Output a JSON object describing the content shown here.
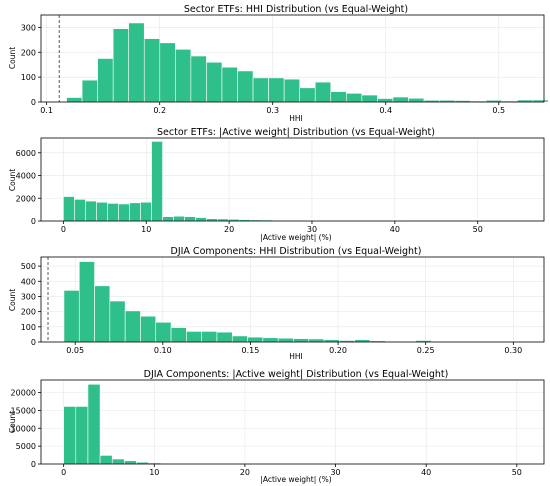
{
  "chart_data": [
    {
      "type": "bar",
      "title": "Sector ETFs: HHI Distribution (vs Equal-Weight)",
      "xlabel": "HHI",
      "ylabel": "Count",
      "xlim": [
        0.095,
        0.54
      ],
      "ylim": [
        0,
        350
      ],
      "xticks": [
        0.1,
        0.2,
        0.3,
        0.4,
        0.5
      ],
      "xtick_labels": [
        "0.1",
        "0.2",
        "0.3",
        "0.4",
        "0.5"
      ],
      "yticks": [
        0,
        100,
        200,
        300
      ],
      "ytick_labels": [
        "0",
        "100",
        "200",
        "300"
      ],
      "reference_line_x": 0.1111,
      "bin_start": 0.1176,
      "bin_width": 0.01375,
      "values": [
        18,
        88,
        175,
        295,
        318,
        255,
        238,
        212,
        185,
        160,
        140,
        125,
        97,
        97,
        92,
        57,
        80,
        42,
        35,
        28,
        14,
        20,
        15,
        7,
        7,
        6,
        4,
        7,
        4,
        8,
        8
      ]
    },
    {
      "type": "bar",
      "title": "Sector ETFs: |Active weight| Distribution (vs Equal-Weight)",
      "xlabel": "|Active weight| (%)",
      "ylabel": "Count",
      "xlim": [
        -2.7,
        58
      ],
      "ylim": [
        0,
        7300
      ],
      "xticks": [
        0,
        10,
        20,
        30,
        40,
        50
      ],
      "xtick_labels": [
        "0",
        "10",
        "20",
        "30",
        "40",
        "50"
      ],
      "yticks": [
        0,
        2000,
        4000,
        6000
      ],
      "ytick_labels": [
        "0",
        "2000",
        "4000",
        "6000"
      ],
      "bin_start": 0,
      "bin_width": 1.33,
      "values": [
        2150,
        1900,
        1750,
        1650,
        1550,
        1500,
        1600,
        1650,
        7000,
        380,
        420,
        380,
        300,
        200,
        180,
        150,
        120,
        100,
        90,
        70,
        60,
        50,
        40,
        35,
        30,
        30,
        25,
        20,
        18,
        15,
        12,
        10,
        10,
        8,
        8,
        6,
        5,
        5,
        4,
        4,
        3,
        3
      ]
    },
    {
      "type": "bar",
      "title": "DJIA Components: HHI Distribution (vs Equal-Weight)",
      "xlabel": "HHI",
      "ylabel": "Count",
      "xlim": [
        0.0305,
        0.3175
      ],
      "ylim": [
        0,
        560
      ],
      "xticks": [
        0.05,
        0.1,
        0.15,
        0.2,
        0.25,
        0.3
      ],
      "xtick_labels": [
        "0.05",
        "0.10",
        "0.15",
        "0.20",
        "0.25",
        "0.30"
      ],
      "yticks": [
        0,
        100,
        200,
        300,
        400,
        500
      ],
      "ytick_labels": [
        "0",
        "100",
        "200",
        "300",
        "400",
        "500"
      ],
      "reference_line_x": 0.0345,
      "bin_start": 0.0436,
      "bin_width": 0.00873,
      "values": [
        340,
        530,
        370,
        270,
        205,
        170,
        130,
        95,
        70,
        70,
        65,
        40,
        32,
        28,
        25,
        22,
        20,
        15,
        10,
        15,
        8,
        5,
        3,
        10,
        3,
        2,
        2,
        2,
        1,
        2,
        1
      ]
    },
    {
      "type": "bar",
      "title": "DJIA Components: |Active weight| Distribution (vs Equal-Weight)",
      "xlabel": "|Active weight| (%)",
      "ylabel": "Count",
      "xlim": [
        -2.5,
        53
      ],
      "ylim": [
        0,
        23500
      ],
      "xticks": [
        0,
        10,
        20,
        30,
        40,
        50
      ],
      "xtick_labels": [
        "0",
        "10",
        "20",
        "30",
        "40",
        "50"
      ],
      "yticks": [
        0,
        5000,
        10000,
        15000,
        20000
      ],
      "ytick_labels": [
        "0",
        "5000",
        "10000",
        "15000",
        "20000"
      ],
      "bin_start": 0,
      "bin_width": 1.34,
      "values": [
        16100,
        16100,
        22300,
        2400,
        1400,
        900,
        500,
        300,
        200,
        120,
        80,
        60,
        40,
        30,
        20,
        15,
        12,
        10,
        8,
        6,
        5,
        4,
        3,
        3,
        2,
        2,
        1,
        1,
        1,
        1,
        1,
        1,
        1,
        1,
        1,
        1,
        1
      ]
    }
  ]
}
